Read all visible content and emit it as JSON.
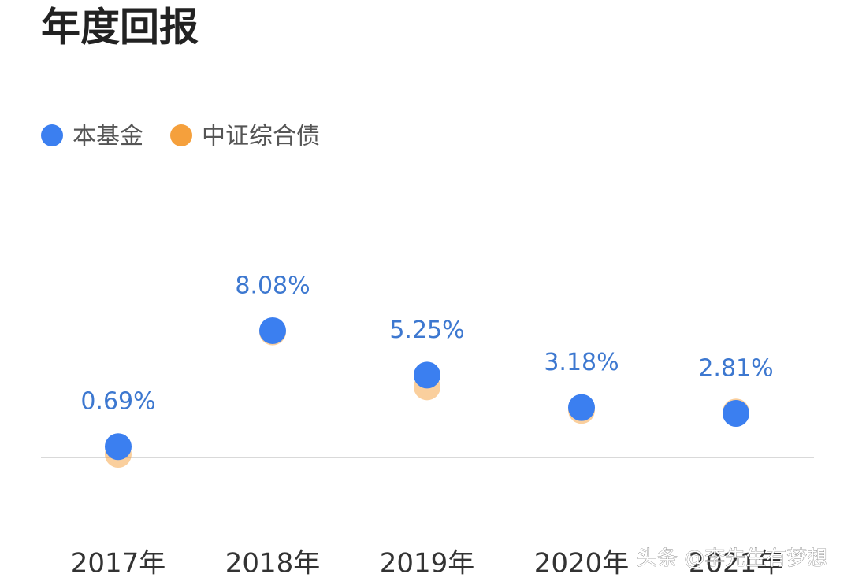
{
  "chart_data": {
    "type": "dot",
    "title": "年度回报",
    "categories": [
      "2017年",
      "2018年",
      "2019年",
      "2020年",
      "2021年"
    ],
    "series": [
      {
        "name": "本基金",
        "color": "#3b7ff0",
        "values": [
          0.69,
          8.08,
          5.25,
          3.18,
          2.81
        ],
        "value_labels": [
          "0.69%",
          "8.08%",
          "5.25%",
          "3.18%",
          "2.81%"
        ]
      },
      {
        "name": "中证综合债",
        "color": "#f5a03c",
        "values": [
          0.2,
          8.0,
          4.5,
          3.0,
          2.9
        ]
      }
    ],
    "ylim": [
      0,
      14
    ],
    "watermark": "头条 @李先生有梦想"
  }
}
